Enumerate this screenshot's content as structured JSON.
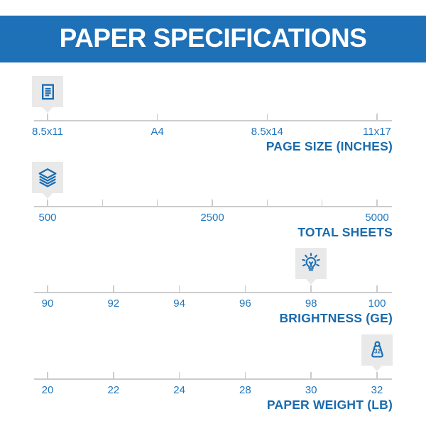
{
  "header": {
    "title": "PAPER SPECIFICATIONS"
  },
  "colors": {
    "banner_blue": "#1e70b7",
    "tick_label_blue": "#2176bd",
    "title_blue": "#1a6bad",
    "axis_gray": "#cccccc",
    "marker_box_gray": "#e9e9e9",
    "icon_blue": "#1a6db4",
    "header_text": "#ffffff"
  },
  "scales": [
    {
      "title": "PAGE SIZE (INCHES)",
      "icon": "document-icon",
      "ticks": [
        "8.5x11",
        "A4",
        "8.5x14",
        "11x17"
      ],
      "marker_index": 0,
      "selected_value": "8.5x11"
    },
    {
      "title": "TOTAL SHEETS",
      "icon": "paper-stack-icon",
      "ticks": [
        "500",
        "",
        "",
        "2500",
        "",
        "",
        "5000"
      ],
      "marker_index": 0,
      "selected_value": "500"
    },
    {
      "title": "BRIGHTNESS (GE)",
      "icon": "lightbulb-icon",
      "ticks": [
        "90",
        "92",
        "94",
        "96",
        "98",
        "100"
      ],
      "marker_index": 4,
      "selected_value": "98"
    },
    {
      "title": "PAPER WEIGHT (LB)",
      "icon": "weight-icon",
      "icon_label": "32",
      "ticks": [
        "20",
        "22",
        "24",
        "28",
        "30",
        "32"
      ],
      "marker_index": 5,
      "selected_value": "32"
    }
  ],
  "chart_data": [
    {
      "type": "scatter",
      "subtype": "gauge-scale",
      "title": "PAGE SIZE (INCHES)",
      "x_ticks": [
        "8.5x11",
        "A4",
        "8.5x14",
        "11x17"
      ],
      "selected": "8.5x11",
      "tick_marks": 4,
      "legend_position": "none",
      "grid": false
    },
    {
      "type": "scatter",
      "subtype": "gauge-scale",
      "title": "TOTAL SHEETS",
      "x_ticks": [
        "500",
        "2500",
        "5000"
      ],
      "selected": 500,
      "tick_marks": 7,
      "axis_range": [
        500,
        5000
      ],
      "legend_position": "none",
      "grid": false
    },
    {
      "type": "scatter",
      "subtype": "gauge-scale",
      "title": "BRIGHTNESS (GE)",
      "x_ticks": [
        90,
        92,
        94,
        96,
        98,
        100
      ],
      "selected": 98,
      "tick_marks": 6,
      "axis_range": [
        90,
        100
      ],
      "legend_position": "none",
      "grid": false
    },
    {
      "type": "scatter",
      "subtype": "gauge-scale",
      "title": "PAPER WEIGHT (LB)",
      "x_ticks": [
        20,
        22,
        24,
        28,
        30,
        32
      ],
      "selected": 32,
      "tick_marks": 6,
      "axis_range": [
        20,
        32
      ],
      "legend_position": "none",
      "grid": false
    }
  ]
}
